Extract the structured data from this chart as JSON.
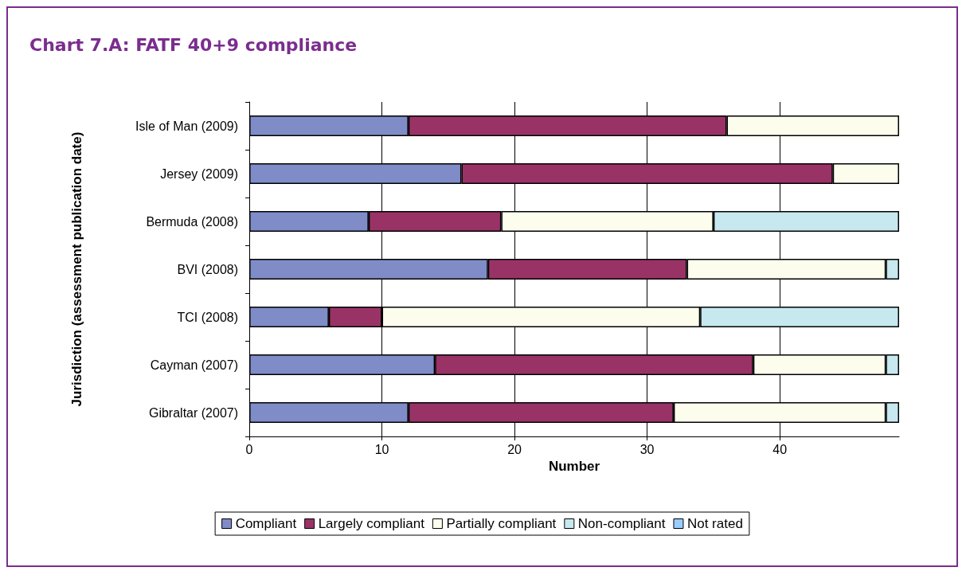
{
  "chart_data": {
    "type": "bar",
    "title": "Chart 7.A: FATF 40+9 compliance",
    "orientation": "horizontal",
    "stacked": true,
    "xlabel": "Number",
    "ylabel": "Jurisdiction (assessment publication date)",
    "categories": [
      "Isle of Man (2009)",
      "Jersey (2009)",
      "Bermuda (2008)",
      "BVI (2008)",
      "TCI (2008)",
      "Cayman (2007)",
      "Gibraltar (2007)"
    ],
    "series": [
      {
        "name": "Compliant",
        "color": "#7f8cc8",
        "values": [
          12,
          16,
          9,
          18,
          6,
          14,
          12
        ]
      },
      {
        "name": "Largely compliant",
        "color": "#993366",
        "values": [
          24,
          28,
          10,
          15,
          4,
          24,
          20
        ]
      },
      {
        "name": "Partially compliant",
        "color": "#fdfdee",
        "values": [
          13,
          5,
          16,
          15,
          24,
          10,
          16
        ]
      },
      {
        "name": "Non-compliant",
        "color": "#c6e8ee",
        "values": [
          0,
          0,
          14,
          1,
          15,
          1,
          1
        ]
      },
      {
        "name": "Not rated",
        "color": "#99ccff",
        "values": [
          0,
          0,
          0,
          0,
          0,
          0,
          0
        ]
      }
    ],
    "xlim": [
      0,
      49
    ],
    "xticks": [
      0,
      10,
      20,
      30,
      40
    ],
    "grid": "x",
    "legend": "bottom"
  }
}
